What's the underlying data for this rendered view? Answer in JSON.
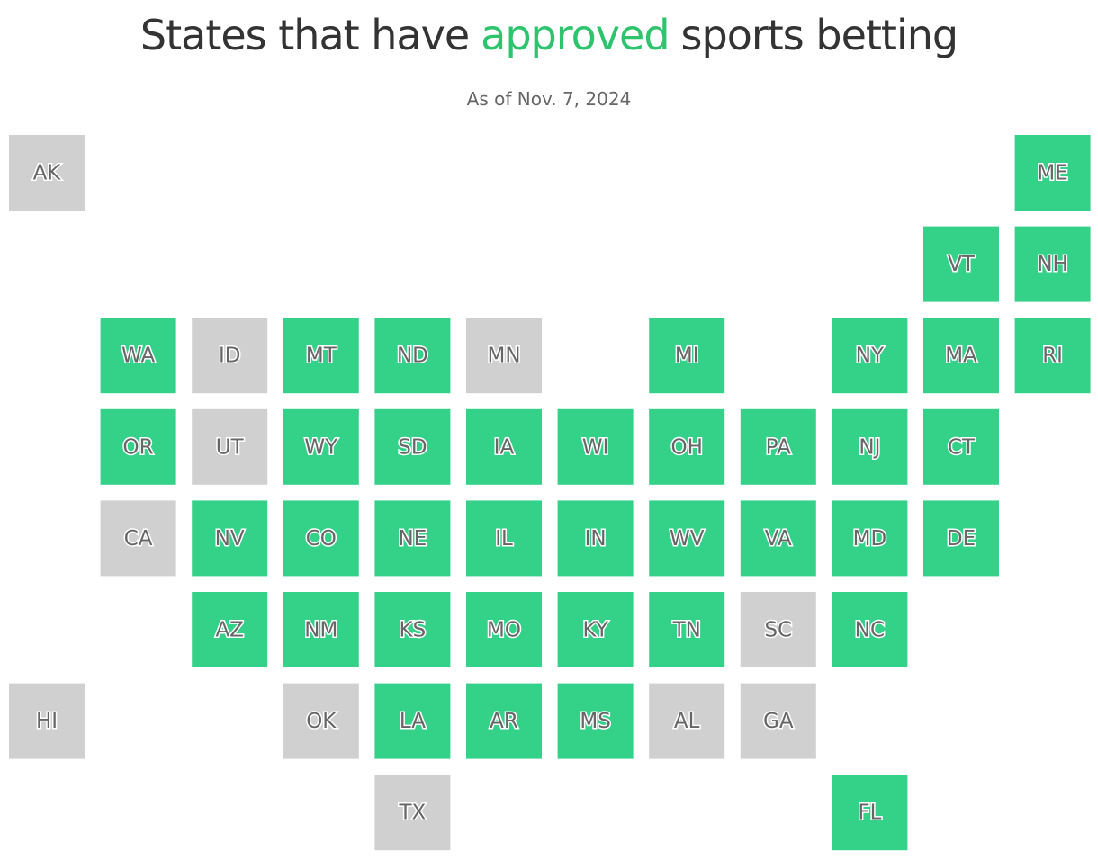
{
  "title": {
    "before": "States that have",
    "highlight": "approved",
    "after": "sports betting"
  },
  "subtitle": "As of Nov. 7, 2024",
  "colors": {
    "approved": "#34d288",
    "not_approved": "#cfd0cf",
    "highlight": "#2ec46e"
  },
  "tiles": [
    {
      "label": "AK",
      "approved": false
    },
    {
      "label": "ME",
      "approved": true
    },
    {
      "label": "VT",
      "approved": true
    },
    {
      "label": "NH",
      "approved": true
    },
    {
      "label": "WA",
      "approved": true
    },
    {
      "label": "ID",
      "approved": false
    },
    {
      "label": "MT",
      "approved": true
    },
    {
      "label": "ND",
      "approved": true
    },
    {
      "label": "MN",
      "approved": false
    },
    {
      "label": "MI",
      "approved": true
    },
    {
      "label": "NY",
      "approved": true
    },
    {
      "label": "MA",
      "approved": true
    },
    {
      "label": "RI",
      "approved": true
    },
    {
      "label": "OR",
      "approved": true
    },
    {
      "label": "UT",
      "approved": false
    },
    {
      "label": "WY",
      "approved": true
    },
    {
      "label": "SD",
      "approved": true
    },
    {
      "label": "IA",
      "approved": true
    },
    {
      "label": "WI",
      "approved": true
    },
    {
      "label": "OH",
      "approved": true
    },
    {
      "label": "PA",
      "approved": true
    },
    {
      "label": "NJ",
      "approved": true
    },
    {
      "label": "CT",
      "approved": true
    },
    {
      "label": "CA",
      "approved": false
    },
    {
      "label": "NV",
      "approved": true
    },
    {
      "label": "CO",
      "approved": true
    },
    {
      "label": "NE",
      "approved": true
    },
    {
      "label": "IL",
      "approved": true
    },
    {
      "label": "IN",
      "approved": true
    },
    {
      "label": "WV",
      "approved": true
    },
    {
      "label": "VA",
      "approved": true
    },
    {
      "label": "MD",
      "approved": true
    },
    {
      "label": "DE",
      "approved": true
    },
    {
      "label": "AZ",
      "approved": true
    },
    {
      "label": "NM",
      "approved": true
    },
    {
      "label": "KS",
      "approved": true
    },
    {
      "label": "MO",
      "approved": true
    },
    {
      "label": "KY",
      "approved": true
    },
    {
      "label": "TN",
      "approved": true
    },
    {
      "label": "SC",
      "approved": false
    },
    {
      "label": "NC",
      "approved": true
    },
    {
      "label": "HI",
      "approved": false
    },
    {
      "label": "OK",
      "approved": false
    },
    {
      "label": "LA",
      "approved": true
    },
    {
      "label": "AR",
      "approved": true
    },
    {
      "label": "MS",
      "approved": true
    },
    {
      "label": "AL",
      "approved": false
    },
    {
      "label": "GA",
      "approved": false
    },
    {
      "label": "TX",
      "approved": false
    },
    {
      "label": "FL",
      "approved": true
    }
  ]
}
